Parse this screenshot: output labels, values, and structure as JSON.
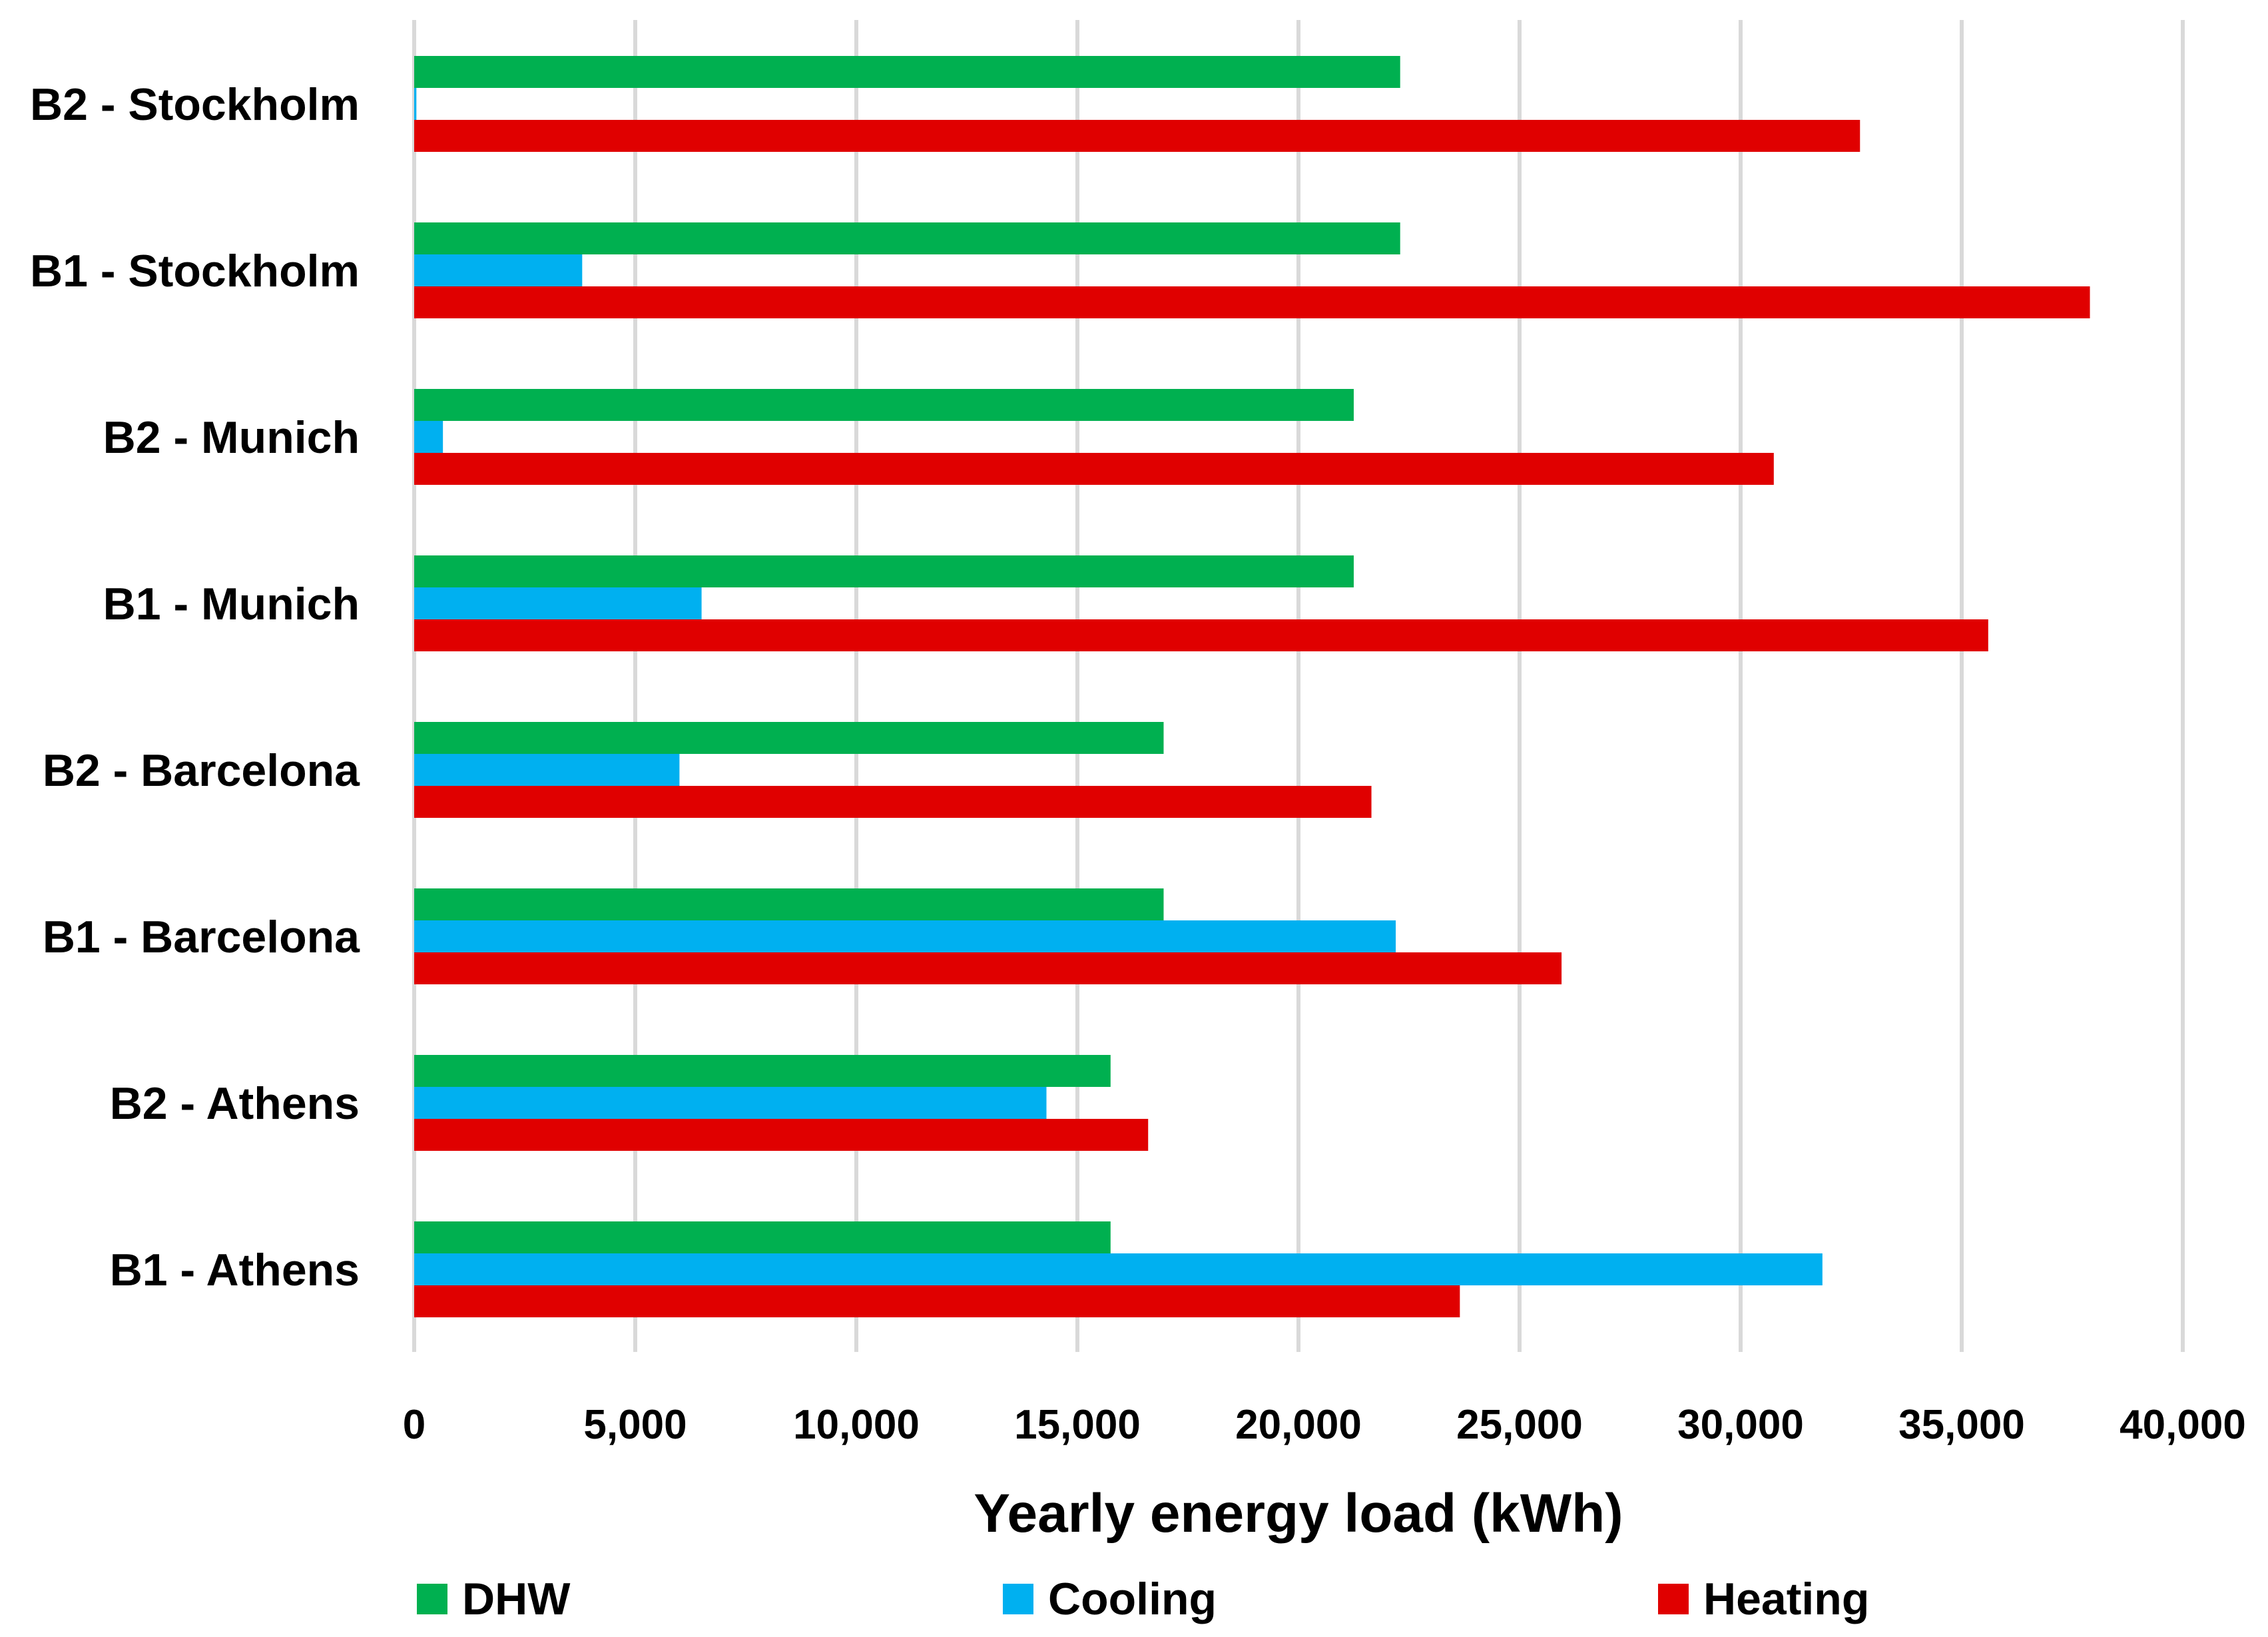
{
  "chart_data": {
    "type": "bar",
    "orientation": "horizontal",
    "title": "",
    "xlabel": "Yearly energy load (kWh)",
    "ylabel": "",
    "xlim": [
      0,
      40000
    ],
    "x_ticks": [
      0,
      5000,
      10000,
      15000,
      20000,
      25000,
      30000,
      35000,
      40000
    ],
    "x_tick_labels": [
      "0",
      "5,000",
      "10,000",
      "15,000",
      "20,000",
      "25,000",
      "30,000",
      "35,000",
      "40,000"
    ],
    "grid": true,
    "legend_position": "bottom",
    "categories": [
      "B2 - Stockholm",
      "B1 - Stockholm",
      "B2 - Munich",
      "B1 - Munich",
      "B2 - Barcelona",
      "B1 - Barcelona",
      "B2 - Athens",
      "B1 - Athens"
    ],
    "series": [
      {
        "name": "DHW",
        "color": "#00b050",
        "values": [
          22300,
          22300,
          21250,
          21250,
          16950,
          16950,
          15750,
          15750
        ]
      },
      {
        "name": "Cooling",
        "color": "#00b0f0",
        "values": [
          50,
          3800,
          650,
          6500,
          6000,
          22200,
          14300,
          31850
        ]
      },
      {
        "name": "Heating",
        "color": "#e00000",
        "values": [
          32700,
          37900,
          30750,
          35600,
          21650,
          25950,
          16600,
          23650
        ]
      }
    ]
  }
}
